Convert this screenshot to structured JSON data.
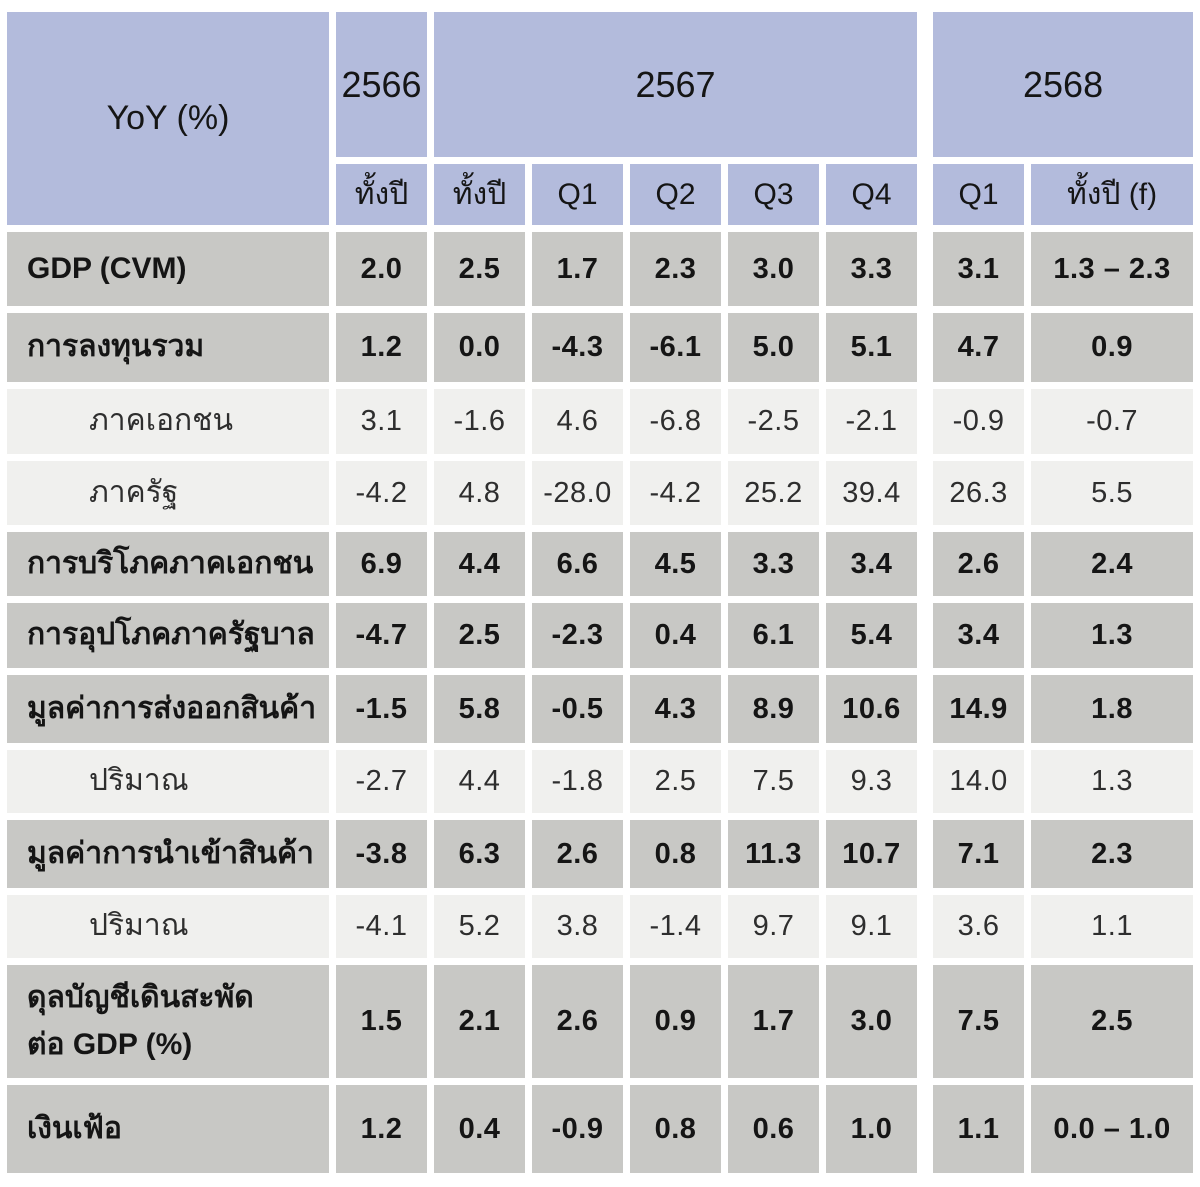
{
  "colors": {
    "header_bg": "#b3bbdc",
    "row_main_bg": "#c8c8c5",
    "row_sub_bg": "#f0f0ee",
    "negative": "#c2412f",
    "text": "#151515",
    "separator": "#ffffff"
  },
  "chart_data": {
    "type": "table",
    "title": "YoY (%)",
    "column_groups": [
      {
        "label": "2566",
        "span": 1
      },
      {
        "label": "2567",
        "span": 5
      },
      {
        "label": "2568",
        "span": 2
      }
    ],
    "columns": [
      "ทั้งปี",
      "ทั้งปี",
      "Q1",
      "Q2",
      "Q3",
      "Q4",
      "Q1",
      "ทั้งปี (f)"
    ],
    "rows": [
      {
        "label": "GDP (CVM)",
        "sub": false,
        "values": [
          "2.0",
          "2.5",
          "1.7",
          "2.3",
          "3.0",
          "3.3",
          "3.1",
          "1.3 – 2.3"
        ]
      },
      {
        "label": "การลงทุนรวม",
        "sub": false,
        "values": [
          "1.2",
          "0.0",
          "-4.3",
          "-6.1",
          "5.0",
          "5.1",
          "4.7",
          "0.9"
        ]
      },
      {
        "label": "ภาคเอกชน",
        "sub": true,
        "values": [
          "3.1",
          "-1.6",
          "4.6",
          "-6.8",
          "-2.5",
          "-2.1",
          "-0.9",
          "-0.7"
        ]
      },
      {
        "label": "ภาครัฐ",
        "sub": true,
        "values": [
          "-4.2",
          "4.8",
          "-28.0",
          "-4.2",
          "25.2",
          "39.4",
          "26.3",
          "5.5"
        ]
      },
      {
        "label": "การบริโภคภาคเอกชน",
        "sub": false,
        "values": [
          "6.9",
          "4.4",
          "6.6",
          "4.5",
          "3.3",
          "3.4",
          "2.6",
          "2.4"
        ]
      },
      {
        "label": "การอุปโภคภาครัฐบาล",
        "sub": false,
        "values": [
          "-4.7",
          "2.5",
          "-2.3",
          "0.4",
          "6.1",
          "5.4",
          "3.4",
          "1.3"
        ]
      },
      {
        "label": "มูลค่าการส่งออกสินค้า",
        "sub": false,
        "values": [
          "-1.5",
          "5.8",
          "-0.5",
          "4.3",
          "8.9",
          "10.6",
          "14.9",
          "1.8"
        ]
      },
      {
        "label": "ปริมาณ",
        "sub": true,
        "values": [
          "-2.7",
          "4.4",
          "-1.8",
          "2.5",
          "7.5",
          "9.3",
          "14.0",
          "1.3"
        ]
      },
      {
        "label": "มูลค่าการนำเข้าสินค้า",
        "sub": false,
        "values": [
          "-3.8",
          "6.3",
          "2.6",
          "0.8",
          "11.3",
          "10.7",
          "7.1",
          "2.3"
        ]
      },
      {
        "label": "ปริมาณ",
        "sub": true,
        "values": [
          "-4.1",
          "5.2",
          "3.8",
          "-1.4",
          "9.7",
          "9.1",
          "3.6",
          "1.1"
        ]
      },
      {
        "label": "ดุลบัญชีเดินสะพัด\nต่อ GDP (%)",
        "sub": false,
        "values": [
          "1.5",
          "2.1",
          "2.6",
          "0.9",
          "1.7",
          "3.0",
          "7.5",
          "2.5"
        ]
      },
      {
        "label": "เงินเฟ้อ",
        "sub": false,
        "values": [
          "1.2",
          "0.4",
          "-0.9",
          "0.8",
          "0.6",
          "1.0",
          "1.1",
          "0.0 – 1.0"
        ]
      }
    ]
  }
}
